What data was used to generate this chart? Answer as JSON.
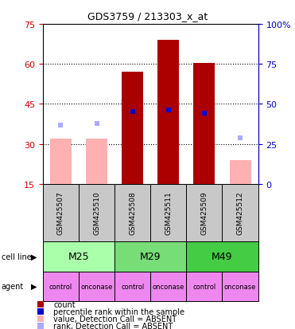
{
  "title": "GDS3759 / 213303_x_at",
  "samples": [
    "GSM425507",
    "GSM425510",
    "GSM425508",
    "GSM425511",
    "GSM425509",
    "GSM425512"
  ],
  "counts": [
    32,
    32,
    57,
    69,
    60.5,
    24
  ],
  "absent": [
    true,
    true,
    false,
    false,
    false,
    true
  ],
  "percentile_ranks": [
    37,
    38,
    45,
    46,
    44,
    29
  ],
  "ylim_left": [
    15,
    75
  ],
  "ylim_right": [
    0,
    100
  ],
  "yticks_left": [
    15,
    30,
    45,
    60,
    75
  ],
  "yticks_right": [
    0,
    25,
    50,
    75,
    100
  ],
  "ytick_labels_right": [
    "0",
    "25",
    "50",
    "75",
    "100%"
  ],
  "bar_color_present": "#AA0000",
  "bar_color_absent": "#FFB0B0",
  "rank_color_present": "#0000CC",
  "rank_color_absent": "#AAAAFF",
  "cell_lines": [
    "M25",
    "M29",
    "M49"
  ],
  "cell_line_colors": [
    "#AAFFAA",
    "#77DD77",
    "#44CC44"
  ],
  "cell_line_spans": [
    [
      0,
      2
    ],
    [
      2,
      4
    ],
    [
      4,
      6
    ]
  ],
  "agents": [
    "control",
    "onconase",
    "control",
    "onconase",
    "control",
    "onconase"
  ],
  "agent_color": "#EE88EE",
  "bar_width": 0.6,
  "background_color": "#FFFFFF",
  "left_axis_color": "#CC0000",
  "right_axis_color": "#0000BB",
  "sample_bg": "#C8C8C8",
  "legend_items": [
    {
      "color": "#AA0000",
      "label": "count"
    },
    {
      "color": "#0000CC",
      "label": "percentile rank within the sample"
    },
    {
      "color": "#FFB0B0",
      "label": "value, Detection Call = ABSENT"
    },
    {
      "color": "#AAAAFF",
      "label": "rank, Detection Call = ABSENT"
    }
  ]
}
